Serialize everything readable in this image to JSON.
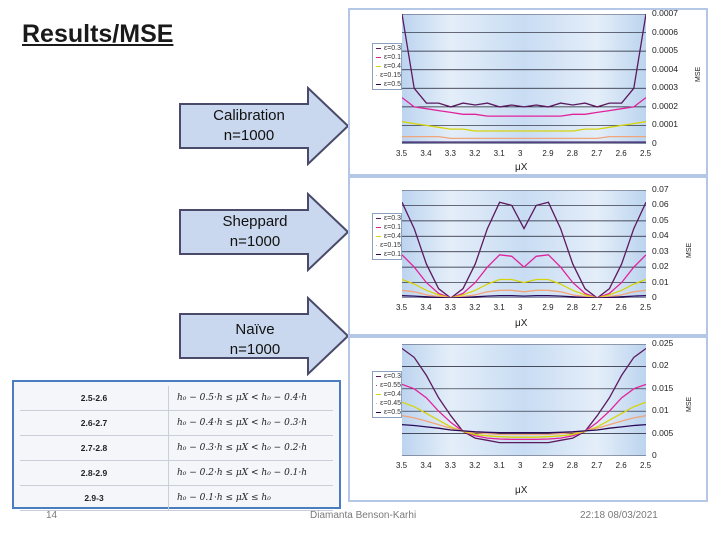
{
  "slide": {
    "title": "Results/MSE",
    "page_number": "14",
    "author": "Diamanta Benson-Karhi",
    "timestamp": "22:18 08/03/2021"
  },
  "arrows": [
    {
      "line1": "Calibration",
      "line2": "n=1000"
    },
    {
      "line1": "Sheppard",
      "line2": "n=1000"
    },
    {
      "line1": "Naïve",
      "line2": "n=1000"
    }
  ],
  "table": {
    "rows": [
      {
        "range": "2.5-2.6",
        "formula": "h₀ − 0.5·h ≤ μX < h₀ − 0.4·h"
      },
      {
        "range": "2.6-2.7",
        "formula": "h₀ − 0.4·h ≤ μX < h₀ − 0.3·h"
      },
      {
        "range": "2.7-2.8",
        "formula": "h₀ − 0.3·h ≤ μX < h₀ − 0.2·h"
      },
      {
        "range": "2.8-2.9",
        "formula": "h₀ − 0.2·h ≤ μX < h₀ − 0.1·h"
      },
      {
        "range": "2.9-3",
        "formula": "h₀ − 0.1·h ≤ μX ≤ h₀"
      }
    ]
  },
  "colors": {
    "series": [
      "#5b1a5e",
      "#e0239b",
      "#d6d40a",
      "#f0a57a",
      "#2a0a5a"
    ],
    "arrow_fill": "#c9d8ee",
    "arrow_stroke": "#4a4a6a",
    "panel_border": "#b4c7e7",
    "table_border": "#4a7cc0"
  },
  "chart_data": [
    {
      "type": "line",
      "name": "Calibration",
      "x": [
        3.5,
        3.45,
        3.4,
        3.35,
        3.3,
        3.25,
        3.2,
        3.15,
        3.1,
        3.05,
        3.0,
        2.95,
        2.9,
        2.85,
        2.8,
        2.75,
        2.7,
        2.65,
        2.6,
        2.55,
        2.5
      ],
      "xticks": [
        "3.5",
        "3.4",
        "3.3",
        "3.2",
        "3.1",
        "3",
        "2.9",
        "2.8",
        "2.7",
        "2.6",
        "2.5"
      ],
      "yticks": [
        "0.0007",
        "0.0006",
        "0.0005",
        "0.0004",
        "0.0003",
        "0.0002",
        "0.0001",
        "0"
      ],
      "xlabel": "μX",
      "ylabel": "MSE",
      "ylim": [
        0,
        0.0007
      ],
      "legend": [
        "ε=0.3",
        "ε=0.1",
        "ε=0.4",
        "ε=0.15",
        "ε=0.5"
      ],
      "series": [
        {
          "name": "ε=0.3",
          "values": [
            0.0007,
            0.0003,
            0.00022,
            0.00022,
            0.0002,
            0.00022,
            0.00021,
            0.00022,
            0.0002,
            0.00021,
            0.0002,
            0.00021,
            0.0002,
            0.00022,
            0.00021,
            0.00022,
            0.0002,
            0.00022,
            0.00022,
            0.0003,
            0.0007
          ]
        },
        {
          "name": "ε=0.1",
          "values": [
            0.00025,
            0.0002,
            0.00019,
            0.00018,
            0.00017,
            0.00016,
            0.00016,
            0.00015,
            0.00015,
            0.00015,
            0.00015,
            0.00015,
            0.00015,
            0.00015,
            0.00016,
            0.00016,
            0.00017,
            0.00018,
            0.00019,
            0.0002,
            0.00025
          ]
        },
        {
          "name": "ε=0.4",
          "values": [
            0.00012,
            0.00011,
            0.0001,
            9e-05,
            8e-05,
            8e-05,
            7e-05,
            7e-05,
            7e-05,
            7e-05,
            7e-05,
            7e-05,
            7e-05,
            7e-05,
            7e-05,
            8e-05,
            8e-05,
            9e-05,
            0.0001,
            0.00011,
            0.00012
          ]
        },
        {
          "name": "ε=0.15",
          "values": [
            4e-05,
            4e-05,
            4e-05,
            4e-05,
            3e-05,
            3e-05,
            3e-05,
            3e-05,
            3e-05,
            3e-05,
            3e-05,
            3e-05,
            3e-05,
            3e-05,
            3e-05,
            3e-05,
            3e-05,
            4e-05,
            4e-05,
            4e-05,
            4e-05
          ]
        },
        {
          "name": "ε=0.5",
          "values": [
            1e-05,
            1e-05,
            1e-05,
            1e-05,
            1e-05,
            1e-05,
            1e-05,
            1e-05,
            1e-05,
            1e-05,
            1e-05,
            1e-05,
            1e-05,
            1e-05,
            1e-05,
            1e-05,
            1e-05,
            1e-05,
            1e-05,
            1e-05,
            1e-05
          ]
        }
      ]
    },
    {
      "type": "line",
      "name": "Sheppard",
      "x": [
        3.5,
        3.45,
        3.4,
        3.35,
        3.3,
        3.25,
        3.2,
        3.15,
        3.1,
        3.05,
        3.0,
        2.95,
        2.9,
        2.85,
        2.8,
        2.75,
        2.7,
        2.65,
        2.6,
        2.55,
        2.5
      ],
      "xticks": [
        "3.5",
        "3.4",
        "3.3",
        "3.2",
        "3.1",
        "3",
        "2.9",
        "2.8",
        "2.7",
        "2.6",
        "2.5"
      ],
      "yticks": [
        "0.07",
        "0.06",
        "0.05",
        "0.04",
        "0.03",
        "0.02",
        "0.01",
        "0"
      ],
      "xlabel": "μX",
      "ylabel": "MSE",
      "ylim": [
        0,
        0.07
      ],
      "legend": [
        "ε=0.3",
        "ε=0.1",
        "ε=0.4",
        "ε=0.15",
        "ε=0.1"
      ],
      "series": [
        {
          "name": "ε=0.3",
          "values": [
            0.062,
            0.045,
            0.022,
            0.006,
            0.0,
            0.006,
            0.022,
            0.045,
            0.062,
            0.06,
            0.045,
            0.06,
            0.062,
            0.045,
            0.022,
            0.006,
            0.0,
            0.006,
            0.022,
            0.045,
            0.062
          ]
        },
        {
          "name": "ε=0.1",
          "values": [
            0.028,
            0.02,
            0.01,
            0.003,
            0.0,
            0.003,
            0.01,
            0.02,
            0.028,
            0.027,
            0.02,
            0.027,
            0.028,
            0.02,
            0.01,
            0.003,
            0.0,
            0.003,
            0.01,
            0.02,
            0.028
          ]
        },
        {
          "name": "ε=0.4",
          "values": [
            0.012,
            0.009,
            0.005,
            0.002,
            0.0,
            0.002,
            0.005,
            0.009,
            0.012,
            0.012,
            0.01,
            0.012,
            0.012,
            0.009,
            0.005,
            0.002,
            0.0,
            0.002,
            0.005,
            0.009,
            0.012
          ]
        },
        {
          "name": "ε=0.15",
          "values": [
            0.005,
            0.004,
            0.002,
            0.001,
            0.0,
            0.001,
            0.002,
            0.004,
            0.005,
            0.005,
            0.004,
            0.005,
            0.005,
            0.004,
            0.002,
            0.001,
            0.0,
            0.001,
            0.002,
            0.004,
            0.005
          ]
        },
        {
          "name": "ε=0.1",
          "values": [
            0.0015,
            0.0012,
            0.0008,
            0.0003,
            0.0,
            0.0003,
            0.0008,
            0.0012,
            0.0015,
            0.0015,
            0.0012,
            0.0015,
            0.0015,
            0.0012,
            0.0008,
            0.0003,
            0.0,
            0.0003,
            0.0008,
            0.0012,
            0.0015
          ]
        }
      ]
    },
    {
      "type": "line",
      "name": "Naïve",
      "x": [
        3.5,
        3.45,
        3.4,
        3.35,
        3.3,
        3.25,
        3.2,
        3.15,
        3.1,
        3.05,
        3.0,
        2.95,
        2.9,
        2.85,
        2.8,
        2.75,
        2.7,
        2.65,
        2.6,
        2.55,
        2.5
      ],
      "xticks": [
        "3.5",
        "3.4",
        "3.3",
        "3.2",
        "3.1",
        "3",
        "2.9",
        "2.8",
        "2.7",
        "2.6",
        "2.5"
      ],
      "yticks": [
        "0.025",
        "0.02",
        "0.015",
        "0.01",
        "0.005",
        "0"
      ],
      "xlabel": "μX",
      "ylabel": "MSE",
      "ylim": [
        0,
        0.025
      ],
      "legend": [
        "ε=0.3",
        "ε=0.55",
        "ε=0.4",
        "ε=0.45",
        "ε=0.5"
      ],
      "series": [
        {
          "name": "ε=0.3",
          "values": [
            0.024,
            0.022,
            0.018,
            0.013,
            0.009,
            0.0055,
            0.004,
            0.0035,
            0.003,
            0.003,
            0.003,
            0.003,
            0.003,
            0.0035,
            0.004,
            0.0055,
            0.009,
            0.013,
            0.018,
            0.022,
            0.024
          ]
        },
        {
          "name": "ε=0.55",
          "values": [
            0.016,
            0.015,
            0.013,
            0.01,
            0.0075,
            0.0055,
            0.0045,
            0.004,
            0.0038,
            0.0037,
            0.0037,
            0.0037,
            0.0038,
            0.004,
            0.0045,
            0.0055,
            0.0075,
            0.01,
            0.013,
            0.015,
            0.016
          ]
        },
        {
          "name": "ε=0.4",
          "values": [
            0.012,
            0.011,
            0.0095,
            0.008,
            0.0065,
            0.0055,
            0.0048,
            0.0045,
            0.0043,
            0.0042,
            0.0042,
            0.0042,
            0.0043,
            0.0045,
            0.0048,
            0.0055,
            0.0065,
            0.008,
            0.0095,
            0.011,
            0.012
          ]
        },
        {
          "name": "ε=0.45",
          "values": [
            0.009,
            0.0085,
            0.0078,
            0.007,
            0.0062,
            0.0056,
            0.0052,
            0.005,
            0.0048,
            0.0048,
            0.0048,
            0.0048,
            0.0048,
            0.005,
            0.0052,
            0.0056,
            0.0062,
            0.007,
            0.0078,
            0.0085,
            0.009
          ]
        },
        {
          "name": "ε=0.5",
          "values": [
            0.007,
            0.0068,
            0.0065,
            0.0062,
            0.0058,
            0.0056,
            0.0054,
            0.0053,
            0.0052,
            0.0052,
            0.0052,
            0.0052,
            0.0052,
            0.0053,
            0.0054,
            0.0056,
            0.0058,
            0.0062,
            0.0065,
            0.0068,
            0.007
          ]
        }
      ]
    }
  ]
}
